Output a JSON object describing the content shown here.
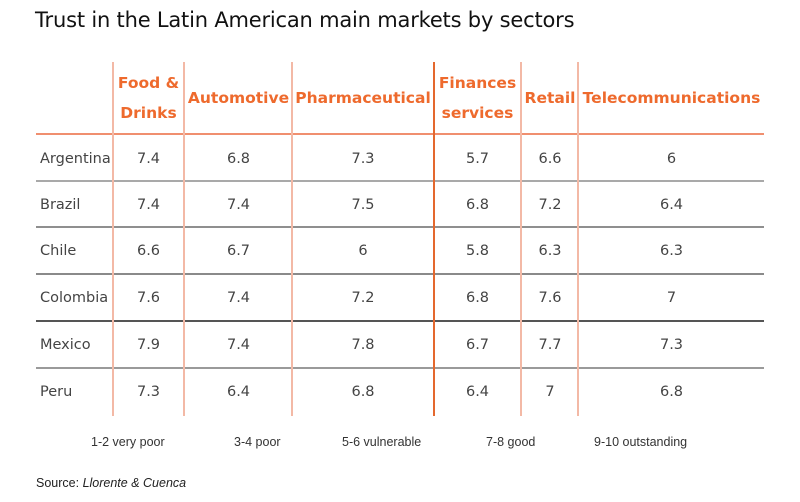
{
  "title": "Trust in the Latin American main markets by sectors",
  "table": {
    "columns": [
      {
        "key": "food",
        "label_lines": [
          "Food &",
          "Drinks"
        ]
      },
      {
        "key": "automotive",
        "label_lines": [
          "Automotive"
        ]
      },
      {
        "key": "pharma",
        "label_lines": [
          "Pharmaceutical"
        ]
      },
      {
        "key": "finance",
        "label_lines": [
          "Finances",
          "services"
        ]
      },
      {
        "key": "retail",
        "label_lines": [
          "Retail"
        ]
      },
      {
        "key": "telecom",
        "label_lines": [
          "Telecommunications"
        ]
      }
    ],
    "rows": [
      {
        "country": "Argentina",
        "values": [
          "7.4",
          "6.8",
          "7.3",
          "5.7",
          "6.6",
          "6"
        ]
      },
      {
        "country": "Brazil",
        "values": [
          "7.4",
          "7.4",
          "7.5",
          "6.8",
          "7.2",
          "6.4"
        ]
      },
      {
        "country": "Chile",
        "values": [
          "6.6",
          "6.7",
          "6",
          "5.8",
          "6.3",
          "6.3"
        ]
      },
      {
        "country": "Colombia",
        "values": [
          "7.6",
          "7.4",
          "7.2",
          "6.8",
          "7.6",
          "7"
        ]
      },
      {
        "country": "Mexico",
        "values": [
          "7.9",
          "7.4",
          "7.8",
          "6.7",
          "7.7",
          "7.3"
        ]
      },
      {
        "country": "Peru",
        "values": [
          "7.3",
          "6.4",
          "6.8",
          "6.4",
          "7",
          "6.8"
        ]
      }
    ]
  },
  "legend": [
    "1-2 very poor",
    "3-4 poor",
    "5-6 vulnerable",
    "7-8 good",
    "9-10 outstanding"
  ],
  "source": {
    "prefix": "Source: ",
    "name": "Llorente & Cuenca"
  },
  "colors": {
    "accent": "#ee6a2d",
    "grid_light": "#f3b9a6",
    "text": "#444444"
  }
}
